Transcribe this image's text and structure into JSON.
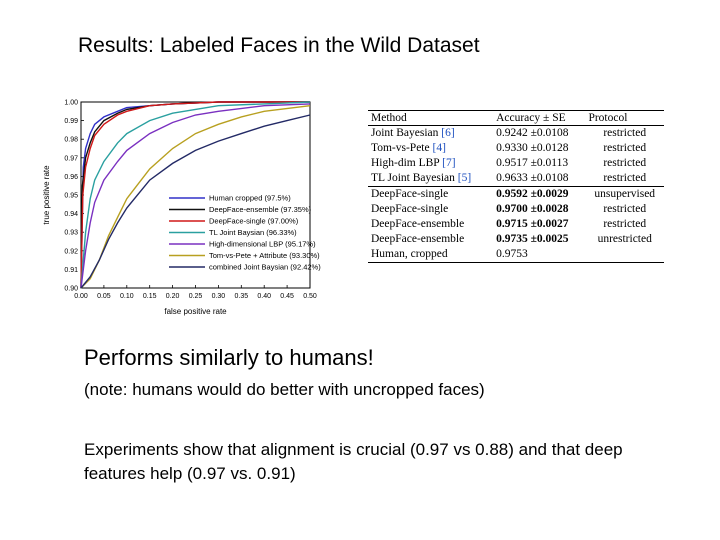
{
  "slide": {
    "title": "Results: Labeled Faces in the Wild Dataset",
    "headline": "Performs similarly to humans!",
    "note": "(note: humans would do better with uncropped faces)",
    "finding": "Experiments show that alignment is crucial (0.97 vs 0.88) and that deep features help (0.97 vs. 0.91)"
  },
  "chart_data": [
    {
      "type": "line",
      "title": "",
      "xlabel": "false positive rate",
      "ylabel": "true positive rate",
      "xlim": [
        0,
        0.5
      ],
      "ylim": [
        0.9,
        1.0
      ],
      "x_ticks": [
        "0.00",
        "0.05",
        "0.10",
        "0.15",
        "0.20",
        "0.25",
        "0.30",
        "0.35",
        "0.40",
        "0.45",
        "0.50"
      ],
      "y_ticks": [
        "0.90",
        "0.91",
        "0.92",
        "0.93",
        "0.94",
        "0.95",
        "0.96",
        "0.97",
        "0.98",
        "0.99",
        "1.00"
      ],
      "grid": false,
      "legend_position": "bottom-right",
      "series": [
        {
          "name": "Human cropped (97.5%)",
          "color": "#3030c8",
          "x": [
            0.0,
            0.005,
            0.01,
            0.02,
            0.03,
            0.05,
            0.08,
            0.1,
            0.15,
            0.2,
            0.3,
            0.5
          ],
          "y": [
            0.9,
            0.965,
            0.975,
            0.983,
            0.988,
            0.992,
            0.995,
            0.997,
            0.998,
            0.999,
            1.0,
            1.0
          ]
        },
        {
          "name": "DeepFace-ensemble (97.35%)",
          "color": "#111111",
          "x": [
            0.0,
            0.003,
            0.01,
            0.02,
            0.03,
            0.05,
            0.08,
            0.1,
            0.15,
            0.2,
            0.3,
            0.5
          ],
          "y": [
            0.9,
            0.955,
            0.97,
            0.978,
            0.984,
            0.99,
            0.994,
            0.996,
            0.998,
            0.999,
            1.0,
            1.0
          ]
        },
        {
          "name": "DeepFace-single (97.00%)",
          "color": "#d01818",
          "x": [
            0.0,
            0.004,
            0.01,
            0.02,
            0.03,
            0.05,
            0.08,
            0.1,
            0.15,
            0.2,
            0.3,
            0.5
          ],
          "y": [
            0.9,
            0.95,
            0.965,
            0.975,
            0.982,
            0.988,
            0.993,
            0.995,
            0.998,
            0.999,
            1.0,
            1.0
          ]
        },
        {
          "name": "TL Joint Baysian (96.33%)",
          "color": "#2aa0a0",
          "x": [
            0.0,
            0.01,
            0.02,
            0.03,
            0.05,
            0.08,
            0.1,
            0.15,
            0.2,
            0.25,
            0.3,
            0.4,
            0.5
          ],
          "y": [
            0.9,
            0.93,
            0.948,
            0.958,
            0.968,
            0.978,
            0.983,
            0.99,
            0.994,
            0.996,
            0.998,
            0.999,
            1.0
          ]
        },
        {
          "name": "High-dimensional LBP (95.17%)",
          "color": "#7a30c0",
          "x": [
            0.0,
            0.01,
            0.02,
            0.03,
            0.05,
            0.08,
            0.1,
            0.15,
            0.2,
            0.25,
            0.3,
            0.4,
            0.5
          ],
          "y": [
            0.9,
            0.92,
            0.935,
            0.946,
            0.958,
            0.968,
            0.974,
            0.983,
            0.989,
            0.993,
            0.995,
            0.998,
            0.999
          ]
        },
        {
          "name": "Tom-vs-Pete + Attribute (93.30%)",
          "color": "#b8a020",
          "x": [
            0.0,
            0.02,
            0.04,
            0.06,
            0.08,
            0.1,
            0.15,
            0.2,
            0.25,
            0.3,
            0.35,
            0.4,
            0.5
          ],
          "y": [
            0.9,
            0.905,
            0.915,
            0.928,
            0.938,
            0.948,
            0.964,
            0.975,
            0.983,
            0.988,
            0.992,
            0.995,
            0.998
          ]
        },
        {
          "name": "combined Joint Baysian (92.42%)",
          "color": "#232a66",
          "x": [
            0.0,
            0.02,
            0.04,
            0.06,
            0.08,
            0.1,
            0.15,
            0.2,
            0.25,
            0.3,
            0.35,
            0.4,
            0.45,
            0.5
          ],
          "y": [
            0.9,
            0.906,
            0.915,
            0.926,
            0.935,
            0.943,
            0.958,
            0.967,
            0.974,
            0.979,
            0.983,
            0.987,
            0.99,
            0.993
          ]
        }
      ]
    },
    {
      "type": "table",
      "columns": [
        "Method",
        "Accuracy ± SE",
        "Protocol"
      ],
      "rows": [
        {
          "method": "Joint Bayesian",
          "ref": "[6]",
          "accuracy": "0.9242 ±0.0108",
          "protocol": "restricted",
          "bold": false
        },
        {
          "method": "Tom-vs-Pete",
          "ref": "[4]",
          "accuracy": "0.9330 ±0.0128",
          "protocol": "restricted",
          "bold": false
        },
        {
          "method": "High-dim LBP",
          "ref": "[7]",
          "accuracy": "0.9517 ±0.0113",
          "protocol": "restricted",
          "bold": false
        },
        {
          "method": "TL Joint Bayesian",
          "ref": "[5]",
          "accuracy": "0.9633 ±0.0108",
          "protocol": "restricted",
          "bold": false
        },
        {
          "method": "DeepFace-single",
          "ref": "",
          "accuracy": "0.9592 ±0.0029",
          "protocol": "unsupervised",
          "bold": true
        },
        {
          "method": "DeepFace-single",
          "ref": "",
          "accuracy": "0.9700 ±0.0028",
          "protocol": "restricted",
          "bold": true
        },
        {
          "method": "DeepFace-ensemble",
          "ref": "",
          "accuracy": "0.9715 ±0.0027",
          "protocol": "restricted",
          "bold": true
        },
        {
          "method": "DeepFace-ensemble",
          "ref": "",
          "accuracy": "0.9735 ±0.0025",
          "protocol": "unrestricted",
          "bold": true
        },
        {
          "method": "Human, cropped",
          "ref": "",
          "accuracy": "0.9753",
          "protocol": "",
          "bold": false
        }
      ]
    }
  ]
}
